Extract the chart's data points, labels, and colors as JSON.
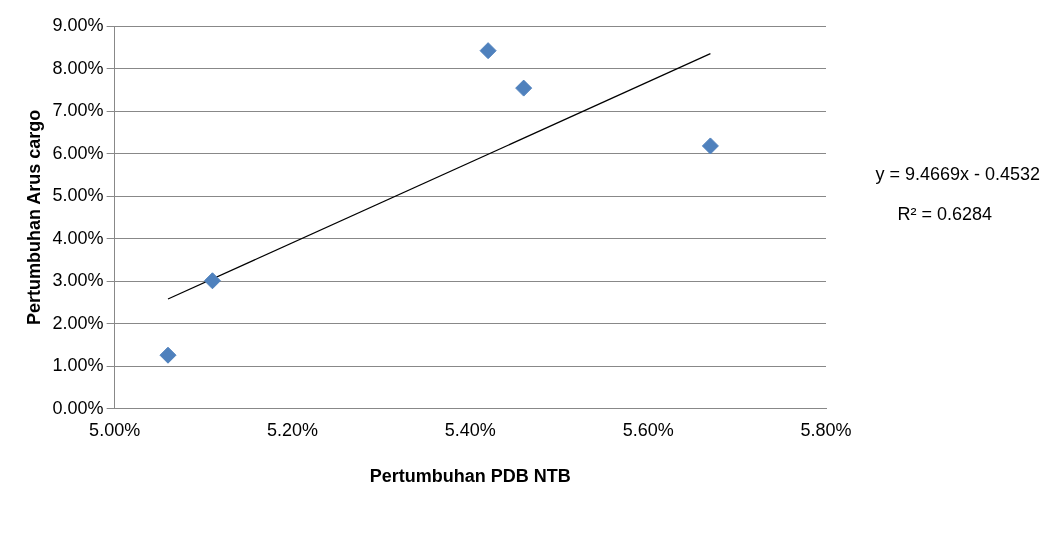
{
  "chart_data": {
    "type": "scatter",
    "xlabel": "Pertumbuhan PDB NTB",
    "ylabel": "Pertumbuhan Arus cargo",
    "series": [
      {
        "marker": "diamond",
        "color": "#4f81bd",
        "x": [
          5.06,
          5.11,
          5.42,
          5.46,
          5.67
        ],
        "values": [
          1.26,
          3.01,
          8.42,
          7.54,
          6.18
        ]
      },
      {
        "type": "line",
        "marker": "none",
        "color": "#000000",
        "x": [
          5.06,
          5.67
        ],
        "values": [
          2.58,
          8.35
        ]
      }
    ],
    "xlim": [
      5.0,
      5.8
    ],
    "xticks": [
      {
        "value": 5.0,
        "label": "5.00%"
      },
      {
        "value": 5.2,
        "label": "5.20%"
      },
      {
        "value": 5.4,
        "label": "5.40%"
      },
      {
        "value": 5.6,
        "label": "5.60%"
      },
      {
        "value": 5.8,
        "label": "5.80%"
      }
    ],
    "ylim": [
      0,
      9
    ],
    "yticks": [
      {
        "value": 0,
        "label": "0.00%"
      },
      {
        "value": 1,
        "label": "1.00%"
      },
      {
        "value": 2,
        "label": "2.00%"
      },
      {
        "value": 3,
        "label": "3.00%"
      },
      {
        "value": 4,
        "label": "4.00%"
      },
      {
        "value": 5,
        "label": "5.00%"
      },
      {
        "value": 6,
        "label": "6.00%"
      },
      {
        "value": 7,
        "label": "7.00%"
      },
      {
        "value": 8,
        "label": "8.00%"
      },
      {
        "value": 9,
        "label": "9.00%"
      }
    ],
    "grid": "y",
    "legend": false,
    "annotations": [
      "y = 9.4669x - 0.4532",
      "R² = 0.6284"
    ]
  }
}
